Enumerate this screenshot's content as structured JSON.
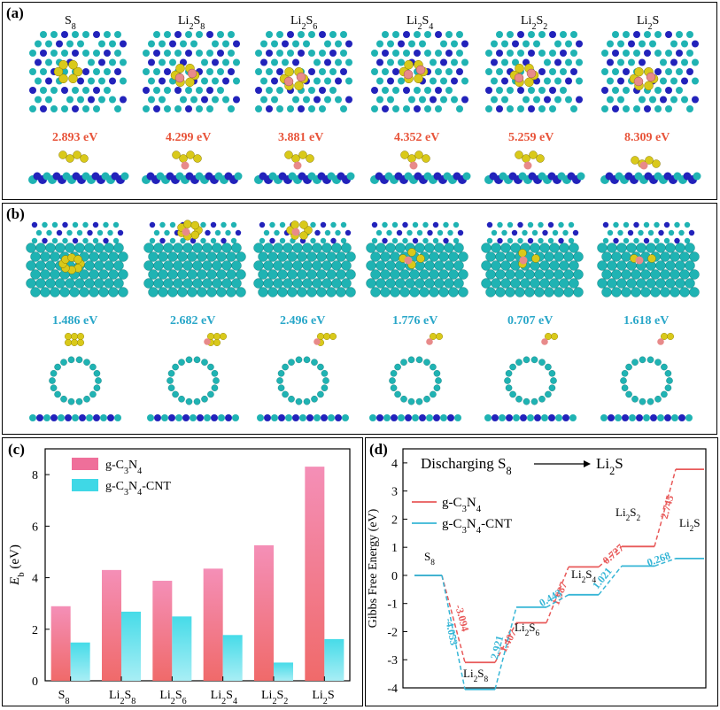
{
  "panel_a": {
    "label": "(a)",
    "species": [
      "S8",
      "Li2S8",
      "Li2S6",
      "Li2S4",
      "Li2S2",
      "Li2S"
    ],
    "energies": [
      "2.893 eV",
      "4.299 eV",
      "3.881 eV",
      "4.352 eV",
      "5.259 eV",
      "8.309 eV"
    ],
    "energy_color": "#e8543a"
  },
  "panel_b": {
    "label": "(b)",
    "energies": [
      "1.486 eV",
      "2.682 eV",
      "2.496 eV",
      "1.776 eV",
      "0.707 eV",
      "1.618 eV"
    ],
    "energy_color": "#2aa7c9"
  },
  "atom_colors": {
    "carbon": "#1fb3b3",
    "nitrogen": "#2222bb",
    "sulfur": "#d9c91a",
    "lithium": "#e88a8a"
  },
  "chart_data": [
    {
      "panel": "(c)",
      "type": "bar",
      "ylabel": "Eb (eV)",
      "ylim": [
        0,
        9
      ],
      "yticks": [
        0,
        2,
        4,
        6,
        8
      ],
      "categories": [
        "S8",
        "Li2S8",
        "Li2S6",
        "Li2S4",
        "Li2S2",
        "Li2S"
      ],
      "series": [
        {
          "name": "g-C3N4",
          "color": "#ef6f9a",
          "values": [
            2.893,
            4.299,
            3.881,
            4.352,
            5.259,
            8.309
          ]
        },
        {
          "name": "g-C3N4-CNT",
          "color": "#3fd8e6",
          "values": [
            1.486,
            2.682,
            2.496,
            1.776,
            0.707,
            1.618
          ]
        }
      ],
      "legend_position": "top-left"
    },
    {
      "panel": "(d)",
      "type": "line",
      "title": "Discharging S8 → Li2S",
      "ylabel": "Gibbs Free Energy (eV)",
      "ylim": [
        -4,
        4.5
      ],
      "yticks": [
        -4,
        -3,
        -2,
        -1,
        0,
        1,
        2,
        3,
        4
      ],
      "species_labels": [
        "S8",
        "Li2S8",
        "Li2S6",
        "Li2S4",
        "Li2S2",
        "Li2S"
      ],
      "series": [
        {
          "name": "g-C3N4",
          "color": "#e85a5a",
          "levels": [
            0,
            -3.094,
            -1.687,
            0.3,
            1.027,
            3.772
          ],
          "steps": [
            "-3.094",
            "1.407",
            "1.987",
            "0.727",
            "2.745"
          ]
        },
        {
          "name": "g-C3N4-CNT",
          "color": "#37b6d6",
          "levels": [
            0,
            -4.053,
            -1.132,
            -0.689,
            0.332,
            0.6
          ],
          "steps": [
            "-4.053",
            "2.921",
            "0.443",
            "1.021",
            "0.268"
          ]
        }
      ],
      "legend_position": "upper-left"
    }
  ]
}
